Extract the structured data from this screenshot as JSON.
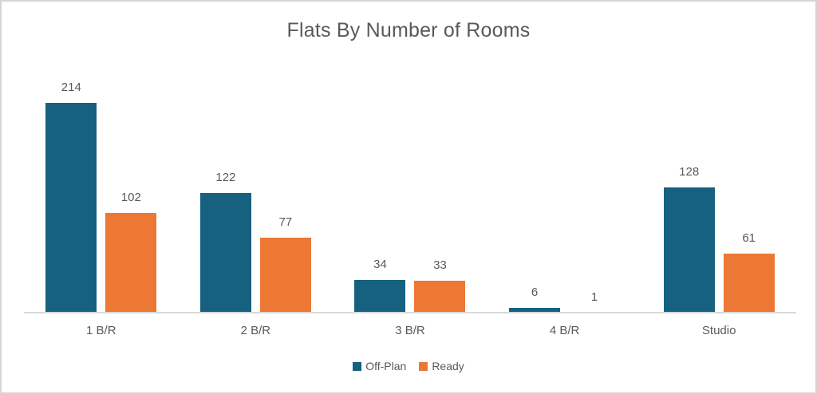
{
  "title": "Flats By Number of Rooms",
  "colors": {
    "off_plan": "#16617f",
    "ready": "#ec7833",
    "title_text": "#595959",
    "label_text": "#595959",
    "axis_line": "#d9d9d9",
    "frame_border": "#d6d6d6",
    "background": "#ffffff"
  },
  "chart_data": {
    "type": "bar",
    "title": "Flats By Number of Rooms",
    "categories": [
      "1 B/R",
      "2 B/R",
      "3 B/R",
      "4 B/R",
      "Studio"
    ],
    "series": [
      {
        "name": "Off-Plan",
        "color": "#16617f",
        "values": [
          214,
          122,
          34,
          6,
          128
        ]
      },
      {
        "name": "Ready",
        "color": "#ec7833",
        "values": [
          102,
          77,
          33,
          1,
          61
        ]
      }
    ],
    "xlabel": "",
    "ylabel": "",
    "ylim": [
      0,
      240
    ],
    "grid": false,
    "y_axis_visible": false,
    "data_labels": true,
    "legend_position": "bottom"
  }
}
